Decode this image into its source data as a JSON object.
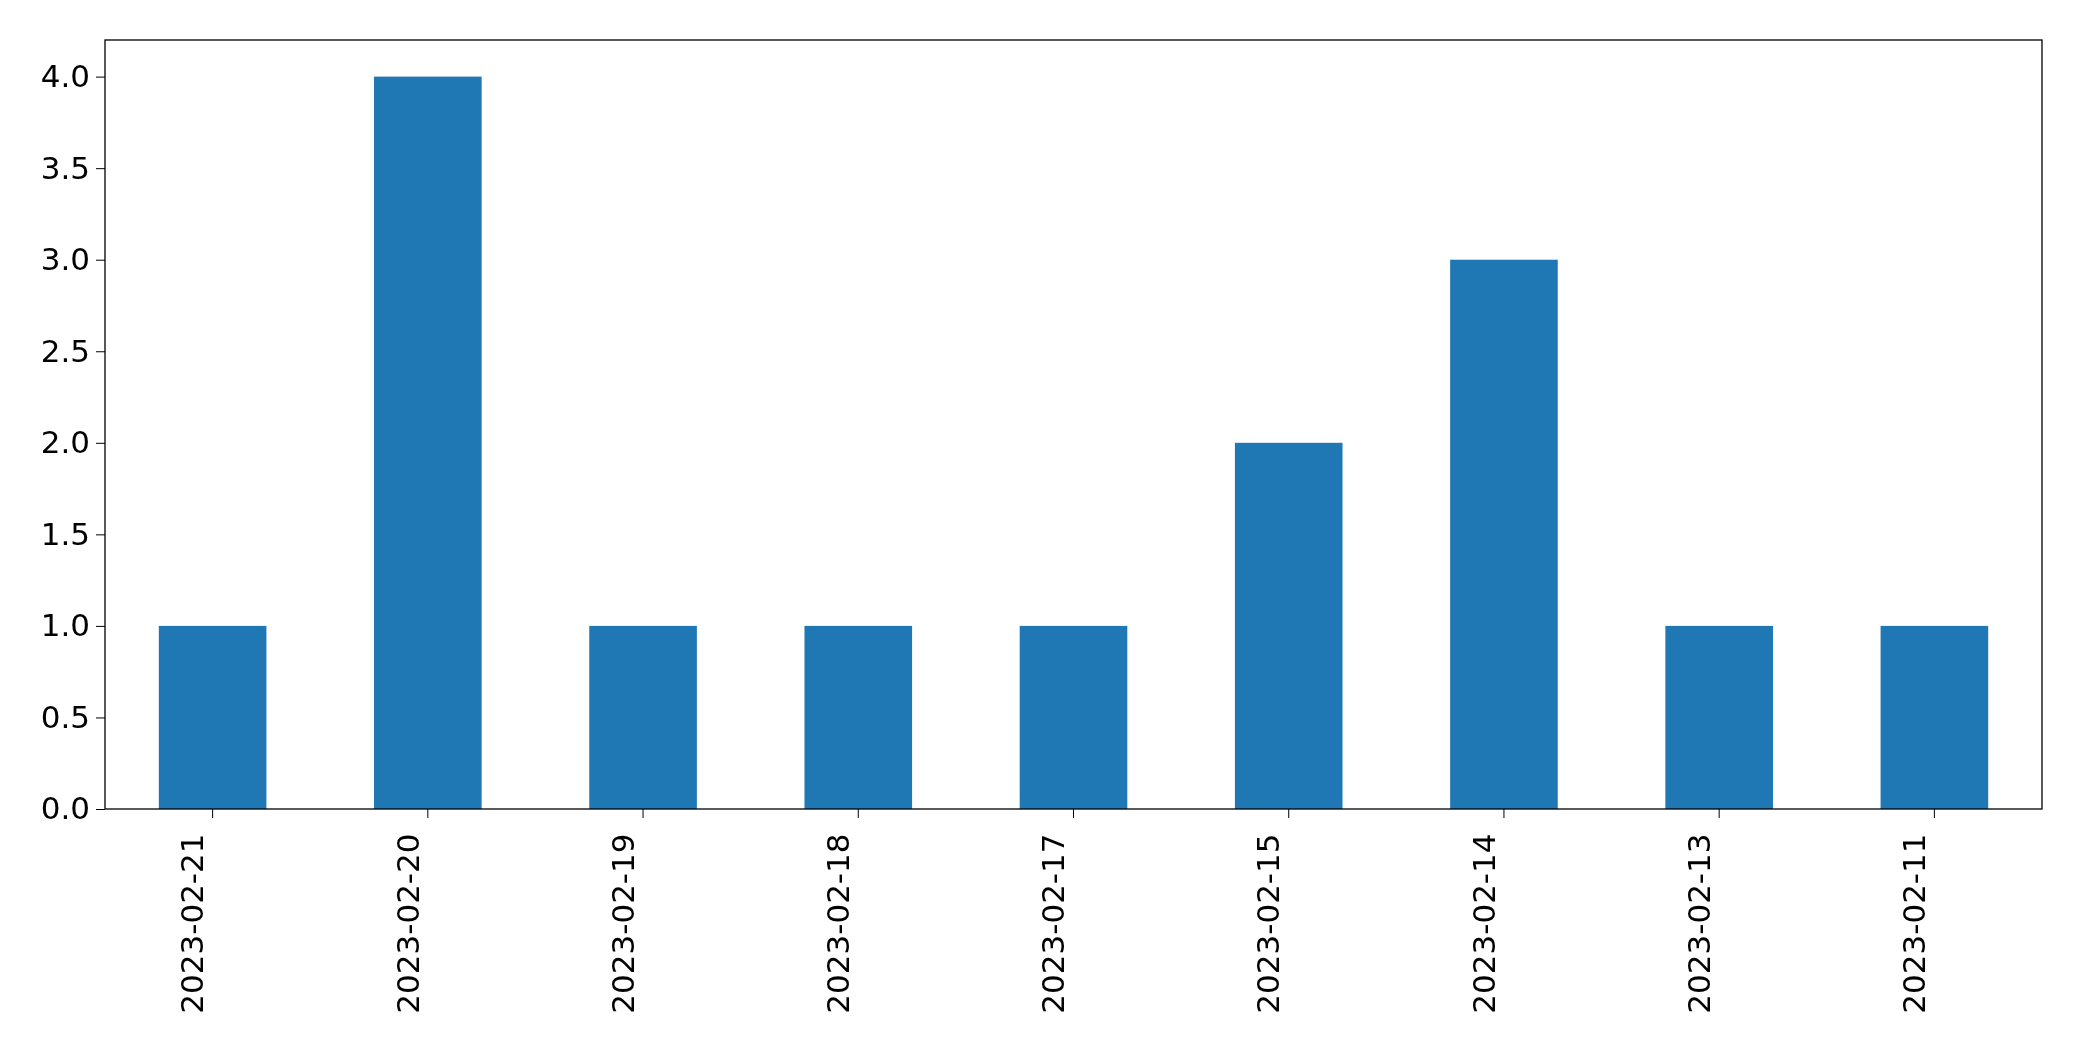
{
  "chart_data": {
    "type": "bar",
    "categories": [
      "2023-02-21",
      "2023-02-20",
      "2023-02-19",
      "2023-02-18",
      "2023-02-17",
      "2023-02-15",
      "2023-02-14",
      "2023-02-13",
      "2023-02-11"
    ],
    "values": [
      1,
      4,
      1,
      1,
      1,
      2,
      3,
      1,
      1
    ],
    "color": "#1f77b4",
    "ylim": [
      0,
      4.2
    ],
    "yticks": [
      {
        "value": 0,
        "label": "0.0"
      },
      {
        "value": 0.5,
        "label": "0.5"
      },
      {
        "value": 1,
        "label": "1.0"
      },
      {
        "value": 1.5,
        "label": "1.5"
      },
      {
        "value": 2,
        "label": "2.0"
      },
      {
        "value": 2.5,
        "label": "2.5"
      },
      {
        "value": 3,
        "label": "3.0"
      },
      {
        "value": 3.5,
        "label": "3.5"
      },
      {
        "value": 4,
        "label": "4.0"
      }
    ],
    "grid": false
  }
}
